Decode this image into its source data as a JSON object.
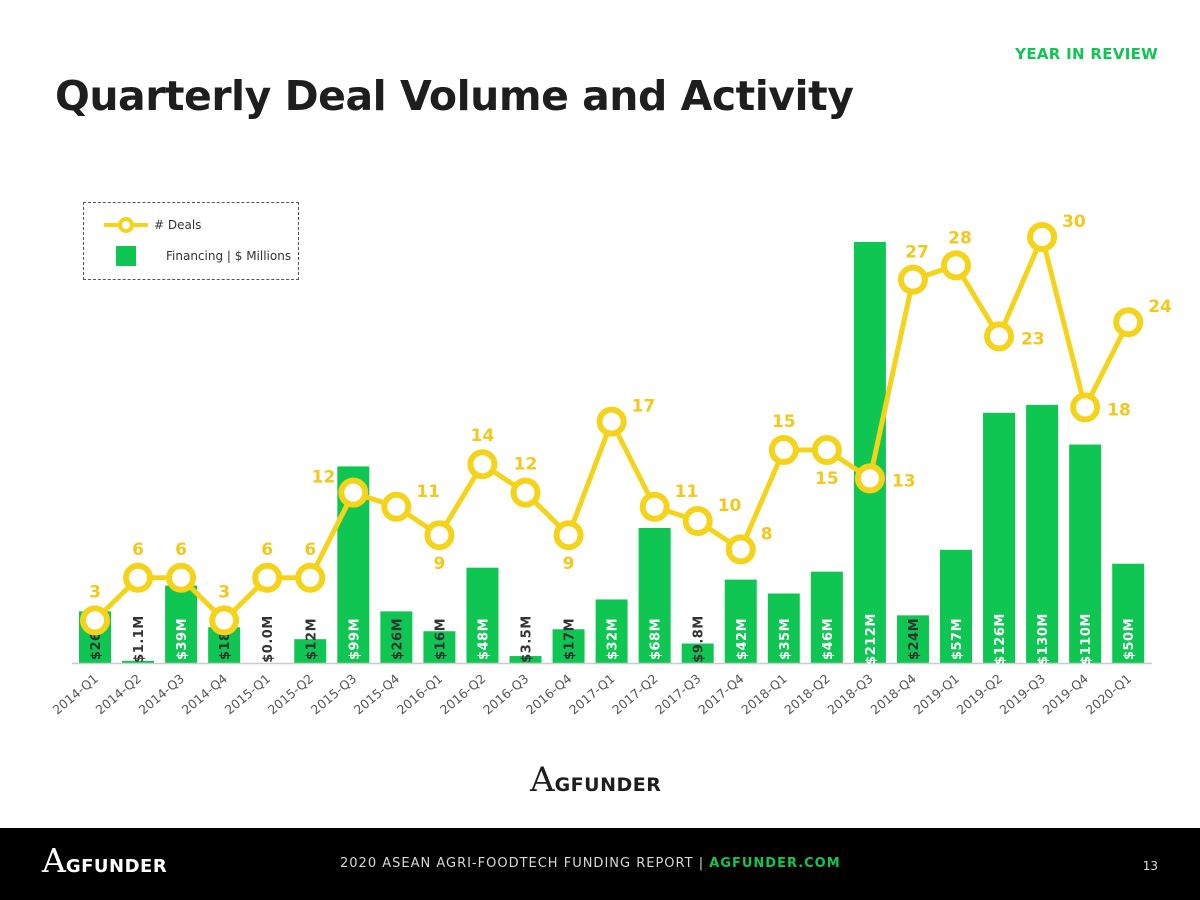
{
  "header": {
    "tag": "YEAR IN REVIEW",
    "title": "Quarterly Deal Volume and Activity"
  },
  "legend": {
    "deals_label": "# Deals",
    "financing_label": "Financing | $ Millions"
  },
  "colors": {
    "bar": "#10c653",
    "line": "#f5d31b",
    "line_label": "#f2c81d",
    "bar_label_light": "#ffffff",
    "bar_label_dark": "#333333",
    "axis": "#cccccc"
  },
  "chart_data": {
    "type": "bar+line",
    "categories": [
      "2014-Q1",
      "2014-Q2",
      "2014-Q3",
      "2014-Q4",
      "2015-Q1",
      "2015-Q2",
      "2015-Q3",
      "2015-Q4",
      "2016-Q1",
      "2016-Q2",
      "2016-Q3",
      "2016-Q4",
      "2017-Q1",
      "2017-Q2",
      "2017-Q3",
      "2017-Q4",
      "2018-Q1",
      "2018-Q2",
      "2018-Q3",
      "2018-Q4",
      "2019-Q1",
      "2019-Q2",
      "2019-Q3",
      "2019-Q4",
      "2020-Q1"
    ],
    "series": [
      {
        "name": "Financing | $ Millions",
        "type": "bar",
        "values": [
          26,
          1.1,
          39,
          18,
          0.0,
          12,
          99,
          26,
          16,
          48,
          3.5,
          17,
          32,
          68,
          9.8,
          42,
          35,
          46,
          212,
          24,
          57,
          126,
          130,
          110,
          50
        ],
        "labels": [
          "$26M",
          "$1.1M",
          "$39M",
          "$18M",
          "$0.0M",
          "$12M",
          "$99M",
          "$26M",
          "$16M",
          "$48M",
          "$3.5M",
          "$17M",
          "$32M",
          "$68M",
          "$9.8M",
          "$42M",
          "$35M",
          "$46M",
          "$212M",
          "$24M",
          "$57M",
          "$126M",
          "$130M",
          "$110M",
          "$50M"
        ]
      },
      {
        "name": "# Deals",
        "type": "line",
        "values": [
          3,
          6,
          6,
          3,
          6,
          6,
          12,
          11,
          9,
          14,
          12,
          9,
          17,
          11,
          10,
          8,
          15,
          15,
          13,
          27,
          28,
          23,
          30,
          18,
          24
        ]
      }
    ],
    "ylim_financing": [
      0,
      212
    ],
    "ylim_deals": [
      0,
      30
    ],
    "title": "Quarterly Deal Volume and Activity"
  },
  "logo": {
    "letter": "A",
    "word": "GFUNDER"
  },
  "footer": {
    "report": "2020 ASEAN AGRI-FOODTECH FUNDING REPORT",
    "separator": "|",
    "site": "AGFUNDER.COM",
    "page": "13"
  }
}
